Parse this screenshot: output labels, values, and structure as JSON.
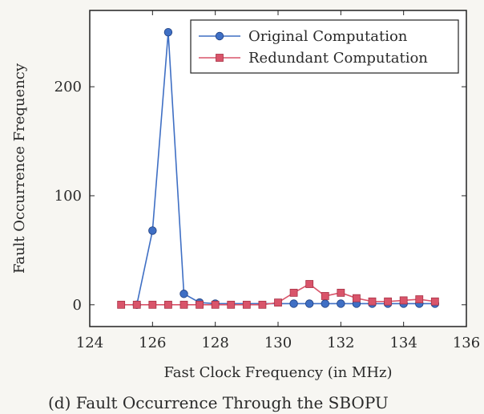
{
  "chart_data": {
    "type": "line",
    "xlabel": "Fast Clock Frequency (in MHz)",
    "ylabel": "Fault Occurrence Frequency",
    "xlim": [
      124,
      136
    ],
    "ylim": [
      -20,
      270
    ],
    "x_ticks": [
      "124",
      "126",
      "128",
      "130",
      "132",
      "134",
      "136"
    ],
    "y_ticks": [
      "0",
      "100",
      "200"
    ],
    "legend_position": "top-right",
    "grid": false,
    "series": [
      {
        "name": "Original Computation",
        "color": "#3f6fc4",
        "marker": "circle",
        "points": [
          [
            125.5,
            0
          ],
          [
            126,
            68
          ],
          [
            126.5,
            250
          ],
          [
            127,
            10
          ],
          [
            127.5,
            2
          ],
          [
            128,
            1
          ],
          [
            130.5,
            1
          ],
          [
            131,
            1
          ],
          [
            131.5,
            1
          ],
          [
            132,
            1
          ],
          [
            132.5,
            1
          ],
          [
            133,
            1
          ],
          [
            133.5,
            1
          ],
          [
            134,
            1
          ],
          [
            134.5,
            1
          ],
          [
            135,
            1
          ]
        ]
      },
      {
        "name": "Redundant Computation",
        "color": "#d9546a",
        "marker": "square",
        "points": [
          [
            125,
            0
          ],
          [
            125.5,
            0
          ],
          [
            126,
            0
          ],
          [
            126.5,
            0
          ],
          [
            127,
            0
          ],
          [
            127.5,
            0
          ],
          [
            128,
            0
          ],
          [
            128.5,
            0
          ],
          [
            129,
            0
          ],
          [
            129.5,
            0
          ],
          [
            130,
            2
          ],
          [
            130.5,
            11
          ],
          [
            131,
            19
          ],
          [
            131.5,
            8
          ],
          [
            132,
            11
          ],
          [
            132.5,
            6
          ],
          [
            133,
            3
          ],
          [
            133.5,
            3
          ],
          [
            134,
            4
          ],
          [
            134.5,
            5
          ],
          [
            135,
            3
          ]
        ]
      }
    ]
  },
  "caption": "(d) Fault Occurrence Through the SBOPU"
}
